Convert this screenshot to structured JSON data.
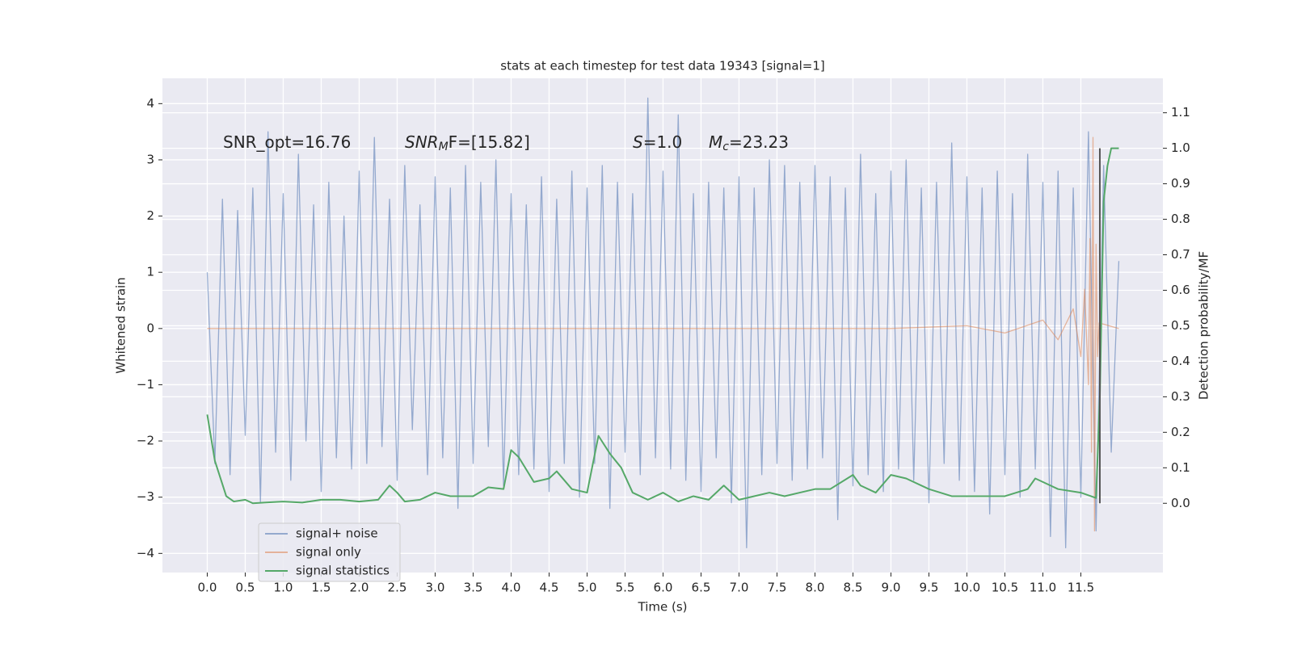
{
  "chart_data": {
    "type": "line",
    "title": "stats at each timestep for test data 19343 [signal=1]",
    "xlabel": "Time (s)",
    "ylabel": "Whitened strain",
    "y2label": "Detection probability/MF",
    "xlim": [
      -0.59,
      12.58
    ],
    "ylim": [
      -4.34,
      4.45
    ],
    "y2lim": [
      -0.195,
      1.197
    ],
    "xticks": [
      {
        "value": 0,
        "label": "0.0"
      },
      0.5,
      {
        "value": 1,
        "label": "1.0"
      },
      1.5,
      {
        "value": 2,
        "label": "2.0"
      },
      2.5,
      {
        "value": 3,
        "label": "3.0"
      },
      3.5,
      {
        "value": 4,
        "label": "4.0"
      },
      4.5,
      {
        "value": 5,
        "label": "5.0"
      },
      5.5,
      {
        "value": 6,
        "label": "6.0"
      },
      6.5,
      {
        "value": 7,
        "label": "7.0"
      },
      7.5,
      {
        "value": 8,
        "label": "8.0"
      },
      8.5,
      {
        "value": 9,
        "label": "9.0"
      },
      9.5,
      {
        "value": 10,
        "label": "10.0"
      },
      10.5,
      {
        "value": 11,
        "label": "11.0"
      },
      11.5
    ],
    "yticks": [
      {
        "value": -4,
        "label": "−4"
      },
      {
        "value": -3,
        "label": "−3"
      },
      {
        "value": -2,
        "label": "−2"
      },
      {
        "value": -1,
        "label": "−1"
      },
      0,
      1,
      2,
      3,
      4
    ],
    "y2ticks": [
      {
        "value": 0,
        "label": "0.0"
      },
      0.1,
      0.2,
      0.3,
      0.4,
      0.5,
      0.6,
      0.7,
      0.8,
      0.9,
      {
        "value": 1,
        "label": "1.0"
      },
      1.1
    ],
    "grid": true,
    "legend": "lower left",
    "annotations": [
      {
        "text": "SNR_opt=16.76"
      },
      {
        "text": "SNR",
        "sub": "M",
        "rest": "F=[15.82]"
      },
      {
        "text": "S",
        "rest": "=1.0"
      },
      {
        "text": "M",
        "sub": "c",
        "rest": "=23.23"
      }
    ],
    "series": [
      {
        "name": "signal+ noise",
        "color": "#4c72b0",
        "x": [
          0,
          0.1,
          0.2,
          0.3,
          0.4,
          0.5,
          0.6,
          0.7,
          0.8,
          0.9,
          1,
          1.1,
          1.2,
          1.3,
          1.4,
          1.5,
          1.6,
          1.7,
          1.8,
          1.9,
          2,
          2.1,
          2.2,
          2.3,
          2.4,
          2.5,
          2.6,
          2.7,
          2.8,
          2.9,
          3,
          3.1,
          3.2,
          3.3,
          3.4,
          3.5,
          3.6,
          3.7,
          3.8,
          3.9,
          4,
          4.1,
          4.2,
          4.3,
          4.4,
          4.5,
          4.6,
          4.7,
          4.8,
          4.9,
          5,
          5.1,
          5.2,
          5.3,
          5.4,
          5.5,
          5.6,
          5.7,
          5.8,
          5.9,
          6,
          6.1,
          6.2,
          6.3,
          6.4,
          6.5,
          6.6,
          6.7,
          6.8,
          6.9,
          7,
          7.1,
          7.2,
          7.3,
          7.4,
          7.5,
          7.6,
          7.7,
          7.8,
          7.9,
          8,
          8.1,
          8.2,
          8.3,
          8.4,
          8.5,
          8.6,
          8.7,
          8.8,
          8.9,
          9,
          9.1,
          9.2,
          9.3,
          9.4,
          9.5,
          9.6,
          9.7,
          9.8,
          9.9,
          10,
          10.1,
          10.2,
          10.3,
          10.4,
          10.5,
          10.6,
          10.7,
          10.8,
          10.9,
          11,
          11.1,
          11.2,
          11.3,
          11.4,
          11.5,
          11.6,
          11.7,
          11.8,
          11.9,
          12
        ],
        "values": [
          1.0,
          -2.4,
          2.3,
          -2.6,
          2.1,
          -1.9,
          2.5,
          -3.1,
          3.5,
          -2.2,
          2.4,
          -2.7,
          3.1,
          -2.0,
          2.2,
          -2.9,
          2.6,
          -2.3,
          2.0,
          -2.5,
          2.8,
          -2.4,
          3.4,
          -2.1,
          2.3,
          -2.7,
          2.9,
          -1.8,
          2.2,
          -2.6,
          2.7,
          -2.3,
          2.5,
          -3.2,
          2.9,
          -2.4,
          2.6,
          -2.1,
          3.0,
          -2.8,
          2.4,
          -2.6,
          2.2,
          -2.5,
          2.7,
          -2.9,
          2.3,
          -2.4,
          2.8,
          -3.0,
          2.5,
          -2.4,
          2.9,
          -3.2,
          2.6,
          -2.2,
          2.4,
          -2.6,
          4.1,
          -2.3,
          2.8,
          -2.5,
          3.8,
          -2.7,
          2.4,
          -2.9,
          2.6,
          -2.3,
          2.5,
          -3.1,
          2.7,
          -3.9,
          2.5,
          -2.6,
          3.0,
          -2.4,
          2.9,
          -2.7,
          2.6,
          -2.5,
          2.9,
          -2.3,
          2.7,
          -3.4,
          2.5,
          -2.8,
          3.1,
          -2.6,
          2.4,
          -2.9,
          2.8,
          -2.5,
          3.0,
          -2.7,
          2.5,
          -3.1,
          2.6,
          -2.4,
          3.3,
          -2.7,
          2.7,
          -2.9,
          2.5,
          -3.3,
          2.8,
          -2.6,
          2.4,
          -3.0,
          3.1,
          -2.5,
          2.6,
          -3.7,
          2.8,
          -3.9,
          2.5,
          -3.0,
          3.5,
          -3.6,
          2.9,
          -2.2,
          1.2
        ]
      },
      {
        "name": "signal only",
        "color": "#dd8452",
        "x": [
          0,
          9,
          10,
          10.5,
          11,
          11.2,
          11.4,
          11.5,
          11.55,
          11.6,
          11.62,
          11.64,
          11.66,
          11.68,
          11.7,
          11.72,
          11.74,
          12
        ],
        "values": [
          0,
          0,
          0.05,
          -0.08,
          0.15,
          -0.2,
          0.35,
          -0.5,
          0.7,
          -1.0,
          1.6,
          -2.2,
          3.4,
          -3.6,
          1.5,
          -0.5,
          0.1,
          0
        ]
      },
      {
        "name": "signal statistics",
        "color": "#55a868",
        "axis": "y2",
        "x": [
          0,
          0.1,
          0.25,
          0.35,
          0.5,
          0.6,
          0.75,
          1,
          1.25,
          1.5,
          1.75,
          2,
          2.25,
          2.4,
          2.5,
          2.6,
          2.8,
          3,
          3.2,
          3.5,
          3.7,
          3.9,
          4,
          4.1,
          4.3,
          4.5,
          4.6,
          4.8,
          5,
          5.15,
          5.3,
          5.45,
          5.6,
          5.8,
          6,
          6.2,
          6.4,
          6.6,
          6.8,
          7,
          7.2,
          7.4,
          7.6,
          7.8,
          8,
          8.2,
          8.5,
          8.6,
          8.8,
          9,
          9.2,
          9.5,
          9.8,
          10.2,
          10.5,
          10.8,
          10.9,
          11,
          11.2,
          11.5,
          11.7,
          11.75,
          11.8,
          11.85,
          11.9,
          12
        ],
        "values": [
          0.25,
          0.12,
          0.02,
          0.005,
          0.01,
          0,
          0.002,
          0.005,
          0.002,
          0.01,
          0.01,
          0.005,
          0.01,
          0.05,
          0.03,
          0.005,
          0.01,
          0.03,
          0.02,
          0.02,
          0.045,
          0.04,
          0.15,
          0.13,
          0.06,
          0.07,
          0.09,
          0.04,
          0.03,
          0.19,
          0.14,
          0.1,
          0.03,
          0.01,
          0.03,
          0.005,
          0.02,
          0.01,
          0.05,
          0.01,
          0.02,
          0.03,
          0.02,
          0.03,
          0.04,
          0.04,
          0.08,
          0.05,
          0.03,
          0.08,
          0.07,
          0.04,
          0.02,
          0.02,
          0.02,
          0.04,
          0.07,
          0.06,
          0.04,
          0.03,
          0.015,
          0.3,
          0.85,
          0.95,
          1.0,
          1.0
        ]
      }
    ],
    "vline": {
      "x": 11.75,
      "values": [
        0,
        1.0
      ],
      "color": "#555555",
      "axis": "y2"
    }
  }
}
